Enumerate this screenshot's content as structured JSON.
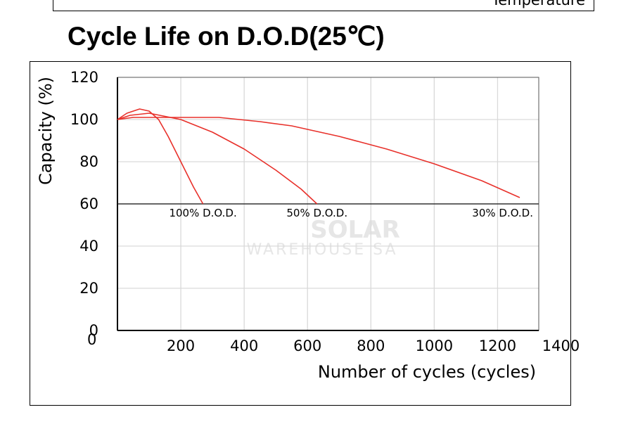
{
  "header": {
    "caption": "Temperature"
  },
  "watermark": {
    "line1": "SOLAR",
    "line2": "WAREHOUSE SA"
  },
  "colors": {
    "curve": "#e8312b",
    "grid": "#d9d9d9",
    "axis": "#000000"
  },
  "chart_data": {
    "type": "line",
    "title": "Cycle Life on D.O.D(25℃)",
    "xlabel": "Number of cycles (cycles)",
    "ylabel": "Capacity  (%)",
    "xlim": [
      0,
      1330
    ],
    "ylim": [
      0,
      120
    ],
    "xticks": [
      200,
      400,
      600,
      800,
      1000,
      1200,
      1400
    ],
    "yticks": [
      0,
      20,
      40,
      60,
      80,
      100,
      120
    ],
    "grid": true,
    "reference_line": 60,
    "series": [
      {
        "name": "100% D.O.D.",
        "x": [
          0,
          30,
          70,
          100,
          130,
          160,
          200,
          240,
          270
        ],
        "y": [
          100,
          103,
          105,
          104,
          100,
          92,
          80,
          68,
          60
        ]
      },
      {
        "name": "50% D.O.D.",
        "x": [
          0,
          40,
          100,
          200,
          300,
          400,
          500,
          580,
          630
        ],
        "y": [
          100,
          102,
          103,
          100,
          94,
          86,
          76,
          67,
          60
        ]
      },
      {
        "name": "30% D.O.D.",
        "x": [
          0,
          50,
          150,
          320,
          450,
          550,
          700,
          850,
          1000,
          1150,
          1270
        ],
        "y": [
          100,
          101,
          101,
          101,
          99,
          97,
          92,
          86,
          79,
          71,
          63
        ]
      }
    ]
  }
}
